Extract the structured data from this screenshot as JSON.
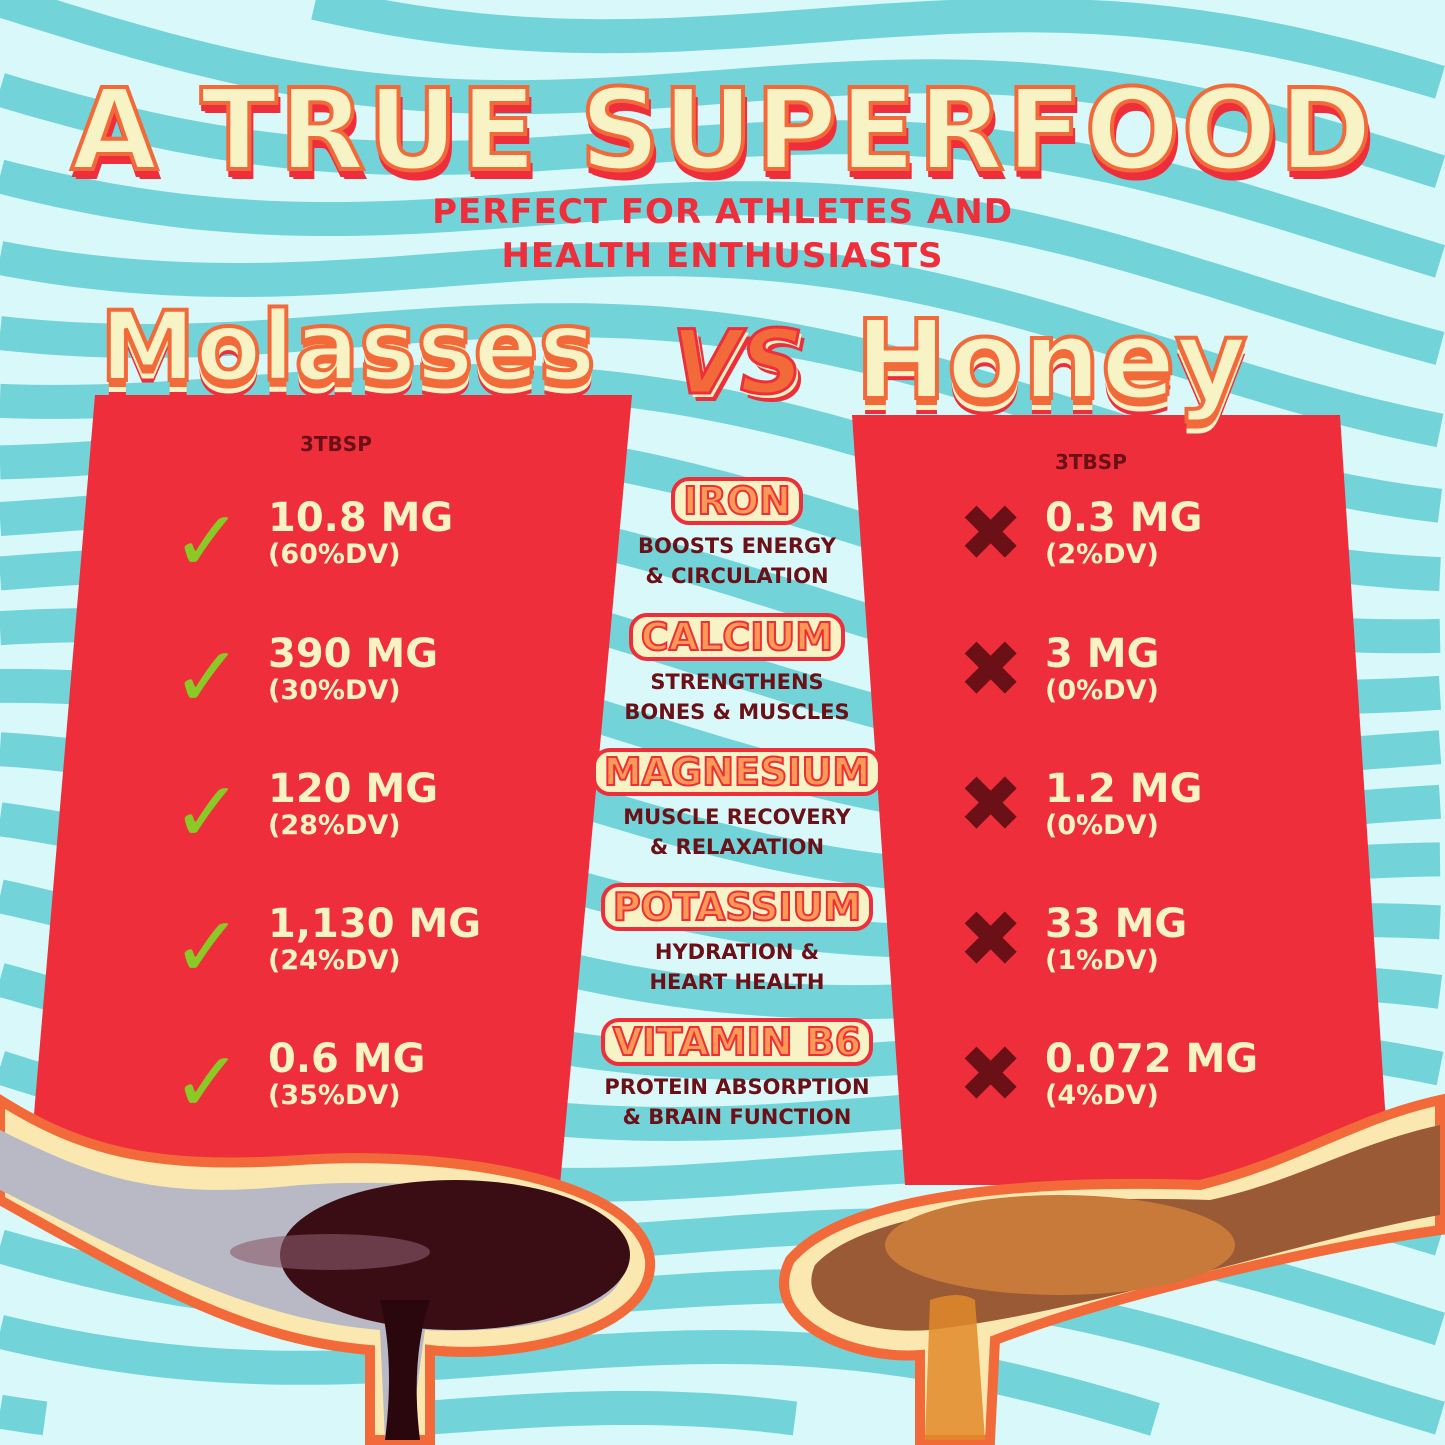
{
  "title": "A TRUE SUPERFOOD",
  "subtitle": [
    "PERFECT FOR ATHLETES AND",
    "HEALTH ENTHUSIASTS"
  ],
  "left": {
    "name": "Molasses",
    "serving": "3TBSP",
    "icon": "check-icon",
    "rows": [
      {
        "value": "10.8 MG",
        "dv": "(60%DV)"
      },
      {
        "value": "390 MG",
        "dv": "(30%DV)"
      },
      {
        "value": "120 MG",
        "dv": "(28%DV)"
      },
      {
        "value": "1,130 MG",
        "dv": "(24%DV)"
      },
      {
        "value": "0.6 MG",
        "dv": "(35%DV)"
      }
    ]
  },
  "vs": "VS",
  "right": {
    "name": "Honey",
    "serving": "3TBSP",
    "icon": "cross-icon",
    "rows": [
      {
        "value": "0.3 MG",
        "dv": "(2%DV)"
      },
      {
        "value": "3 MG",
        "dv": "(0%DV)"
      },
      {
        "value": "1.2 MG",
        "dv": "(0%DV)"
      },
      {
        "value": "33 MG",
        "dv": "(1%DV)"
      },
      {
        "value": "0.072 MG",
        "dv": "(4%DV)"
      }
    ]
  },
  "nutrients": [
    {
      "name": "IRON",
      "desc": [
        "BOOSTS ENERGY",
        "& CIRCULATION"
      ]
    },
    {
      "name": "CALCIUM",
      "desc": [
        "STRENGTHENS",
        "BONES & MUSCLES"
      ]
    },
    {
      "name": "MAGNESIUM",
      "desc": [
        "MUSCLE RECOVERY",
        "& RELAXATION"
      ]
    },
    {
      "name": "POTASSIUM",
      "desc": [
        "HYDRATION &",
        "HEART HEALTH"
      ]
    },
    {
      "name": "VITAMIN B6",
      "desc": [
        "PROTEIN ABSORPTION",
        "& BRAIN FUNCTION"
      ]
    }
  ],
  "colors": {
    "background": "#d9f8fa",
    "wave": "#72d3d8",
    "panel": "#ee2e3a",
    "cream": "#f8f3c4",
    "orange": "#f36a3a",
    "check": "#8ac926",
    "cross": "#6a1016"
  }
}
